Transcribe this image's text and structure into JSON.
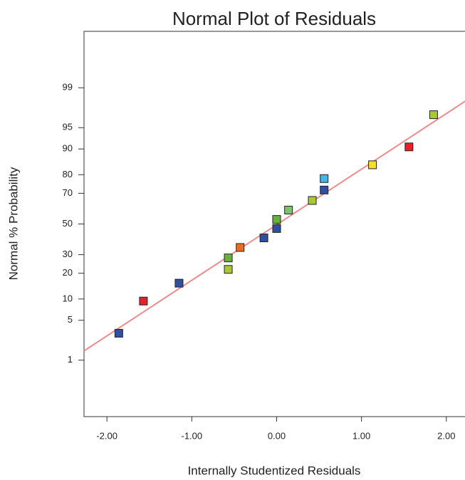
{
  "chart_data": {
    "type": "probability-scatter",
    "title": "Normal Plot of Residuals",
    "x_label": "Internally Studentized Residuals",
    "y_label": "Normal % Probability",
    "y_scale": "probit",
    "xlim": [
      -2.27,
      2.22
    ],
    "ylim": [
      0.05,
      99.95
    ],
    "xticks": [
      {
        "value": -2,
        "label": "-2.00"
      },
      {
        "value": -1,
        "label": "-1.00"
      },
      {
        "value": 0,
        "label": "0.00"
      },
      {
        "value": 1,
        "label": "1.00"
      },
      {
        "value": 2,
        "label": "2.00"
      }
    ],
    "yticks": [
      1,
      5,
      10,
      20,
      30,
      50,
      70,
      80,
      90,
      95,
      99
    ],
    "x": [
      -1.86,
      -1.57,
      -1.15,
      -0.57,
      -0.57,
      -0.43,
      -0.15,
      0.0,
      0.0,
      0.14,
      0.42,
      0.56,
      0.56,
      1.13,
      1.56,
      1.85
    ],
    "values": [
      3.1,
      9.4,
      15.6,
      28.1,
      21.9,
      34.4,
      40.6,
      46.9,
      53.1,
      59.4,
      65.6,
      71.9,
      78.1,
      84.4,
      90.6,
      96.9
    ],
    "colors": [
      "#2f4fa0",
      "#e8202a",
      "#2f4fa0",
      "#6ab03c",
      "#a8c83a",
      "#f06a20",
      "#2f4fa0",
      "#2f4fa0",
      "#6ab03c",
      "#7cc46c",
      "#a8c83a",
      "#2f4fa0",
      "#40b8e0",
      "#f8e020",
      "#e8202a",
      "#a8c83a"
    ],
    "fit_line": {
      "color": "#f08a8a",
      "x": [
        -2.27,
        2.22
      ],
      "values": [
        1.51,
        98.19
      ]
    }
  }
}
